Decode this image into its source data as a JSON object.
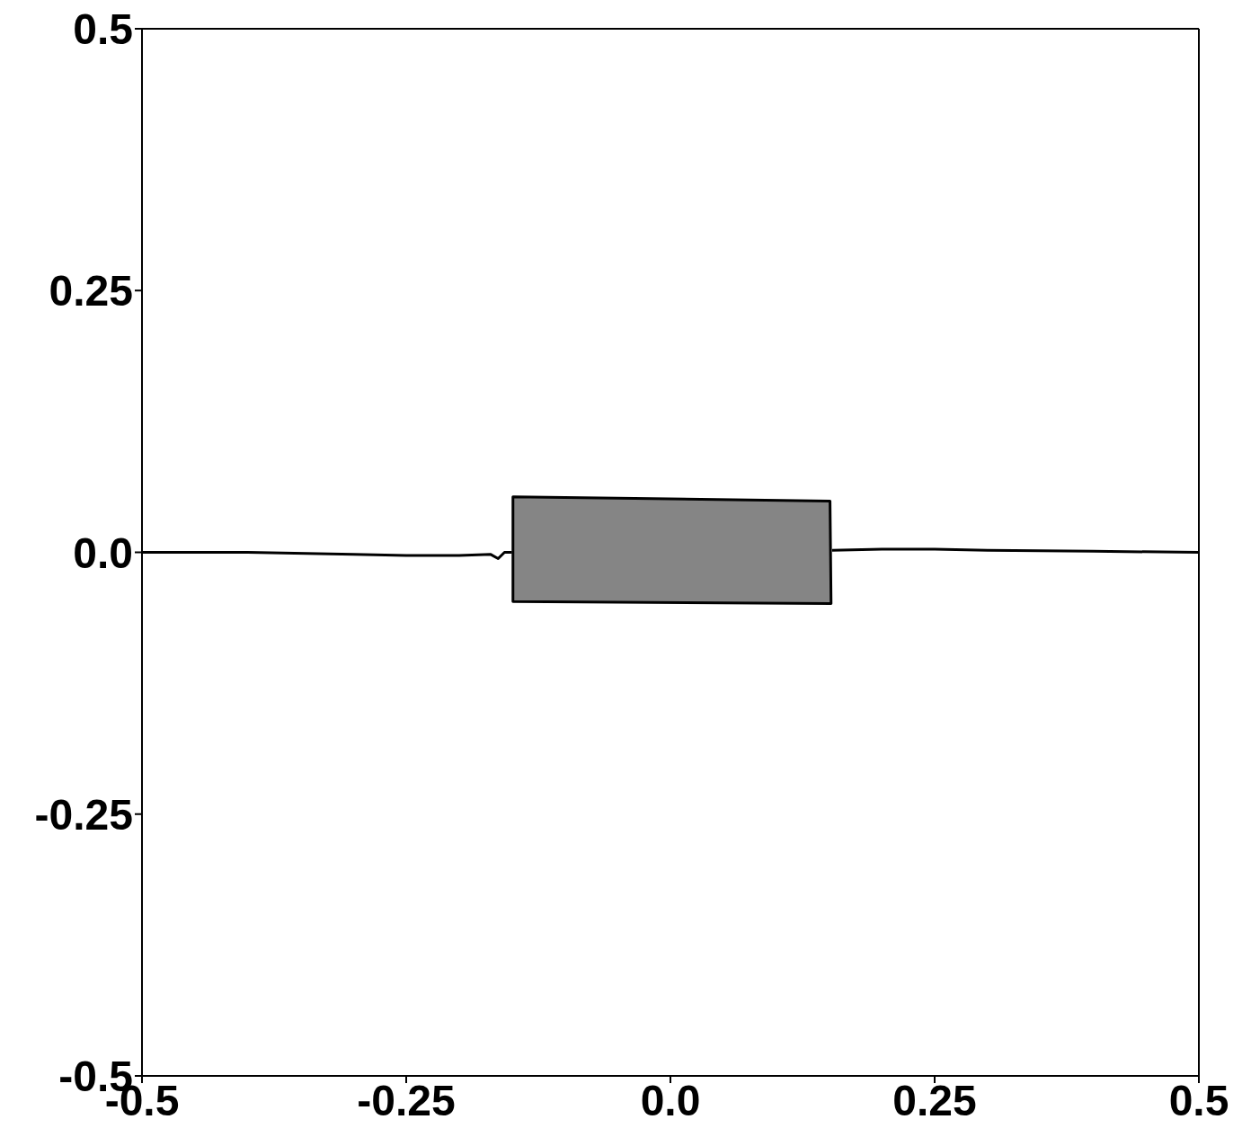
{
  "chart_data": {
    "type": "line",
    "xlim": [
      -0.5,
      0.5
    ],
    "ylim": [
      -0.5,
      0.5
    ],
    "xticks": [
      -0.5,
      -0.25,
      {
        "value": 0,
        "label": "0.0"
      },
      0.25,
      0.5
    ],
    "yticks": [
      -0.5,
      -0.25,
      {
        "value": 0,
        "label": "0.0"
      },
      0.25,
      0.5
    ],
    "marker": "none",
    "line_style": "solid",
    "series": [
      {
        "type": "line",
        "color": "#000000",
        "x": [
          -0.5,
          -0.4,
          -0.3,
          -0.25,
          -0.2,
          -0.17,
          -0.163,
          -0.157,
          -0.15,
          0.15,
          0.153,
          0.2,
          0.25,
          0.3,
          0.4,
          0.5
        ],
        "values": [
          0,
          0,
          -0.002,
          -0.003,
          -0.003,
          -0.002,
          -0.006,
          0,
          0,
          null,
          0.002,
          0.003,
          0.003,
          0.002,
          0.001,
          0
        ]
      },
      {
        "type": "area",
        "color": "#858585",
        "x": [
          -0.149,
          0.151,
          0.152,
          -0.149
        ],
        "values": [
          0.053,
          0.049,
          -0.049,
          -0.047
        ]
      }
    ]
  }
}
